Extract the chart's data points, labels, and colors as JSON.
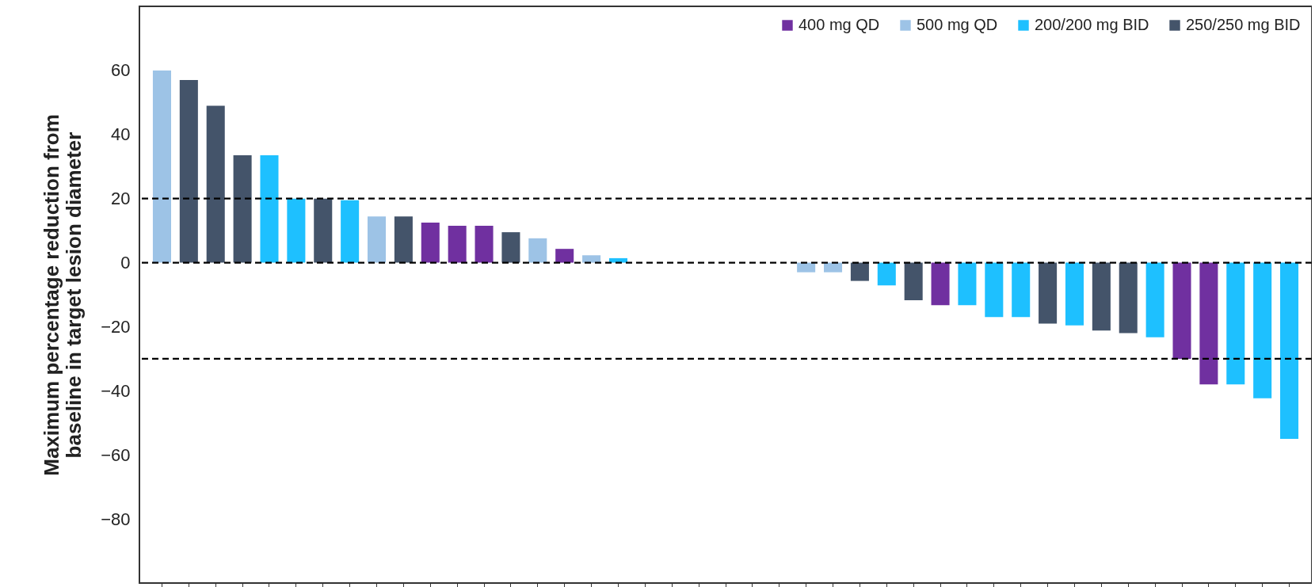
{
  "chart_data": {
    "type": "bar",
    "ylabel": "Maximum percentage reduction from\nbaseline in target lesion diameter",
    "categories": [
      null,
      null,
      null,
      null,
      null,
      null,
      null,
      null,
      null,
      null,
      null,
      null,
      null,
      null,
      null,
      null,
      null,
      null,
      null,
      null,
      null,
      null,
      null,
      null,
      null,
      null,
      null,
      null,
      null,
      null,
      null,
      null,
      null,
      null,
      null,
      null,
      null,
      null,
      null,
      null,
      null,
      null,
      null
    ],
    "series": [
      {
        "name": "400 mg QD",
        "color": "#7030a0",
        "values": [
          null,
          null,
          null,
          null,
          null,
          null,
          null,
          null,
          null,
          null,
          12.5,
          11.5,
          11.5,
          null,
          null,
          4.3,
          null,
          null,
          null,
          null,
          null,
          null,
          null,
          null,
          null,
          null,
          null,
          null,
          null,
          -13.3,
          null,
          null,
          null,
          null,
          null,
          null,
          null,
          null,
          -30,
          -38,
          null,
          null,
          null
        ]
      },
      {
        "name": "500 mg QD",
        "color": "#9dc3e6",
        "values": [
          60,
          null,
          null,
          null,
          null,
          null,
          null,
          null,
          14.4,
          null,
          null,
          null,
          null,
          null,
          7.6,
          null,
          2.3,
          null,
          null,
          null,
          null,
          null,
          null,
          null,
          -3,
          -3,
          null,
          null,
          null,
          null,
          null,
          null,
          null,
          null,
          null,
          null,
          null,
          null,
          null,
          null,
          null,
          null,
          null
        ]
      },
      {
        "name": "200/200 mg BID",
        "color": "#1ec0ff",
        "values": [
          null,
          null,
          null,
          null,
          33.5,
          20,
          null,
          19.5,
          null,
          null,
          null,
          null,
          null,
          null,
          null,
          null,
          null,
          1.4,
          null,
          null,
          null,
          null,
          null,
          null,
          null,
          null,
          null,
          -7.1,
          null,
          null,
          -13.3,
          -17,
          -17,
          null,
          -19.6,
          null,
          null,
          -23.3,
          null,
          null,
          -38,
          -42.3,
          -55
        ]
      },
      {
        "name": "250/250 mg BID",
        "color": "#44546a",
        "values": [
          null,
          57,
          49,
          33.5,
          null,
          null,
          20,
          null,
          null,
          14.4,
          null,
          null,
          null,
          9.5,
          null,
          null,
          null,
          null,
          null,
          null,
          null,
          null,
          null,
          null,
          null,
          null,
          -5.7,
          null,
          -11.7,
          null,
          null,
          null,
          null,
          -19,
          null,
          -21.2,
          -22,
          null,
          null,
          null,
          null,
          null,
          null
        ]
      }
    ],
    "ylim": [
      -100,
      80
    ],
    "yticks": [
      -80,
      -60,
      -40,
      -20,
      0,
      20,
      40,
      60
    ],
    "ref_lines": [
      {
        "axis": "y",
        "value": 20,
        "line_style": "dashed",
        "color": "#000000"
      },
      {
        "axis": "y",
        "value": 0,
        "line_style": "dashed",
        "color": "#000000"
      },
      {
        "axis": "y",
        "value": -30,
        "line_style": "dashed",
        "color": "#000000"
      }
    ],
    "legend": "top right",
    "grid": false,
    "tick_labels": "y"
  }
}
